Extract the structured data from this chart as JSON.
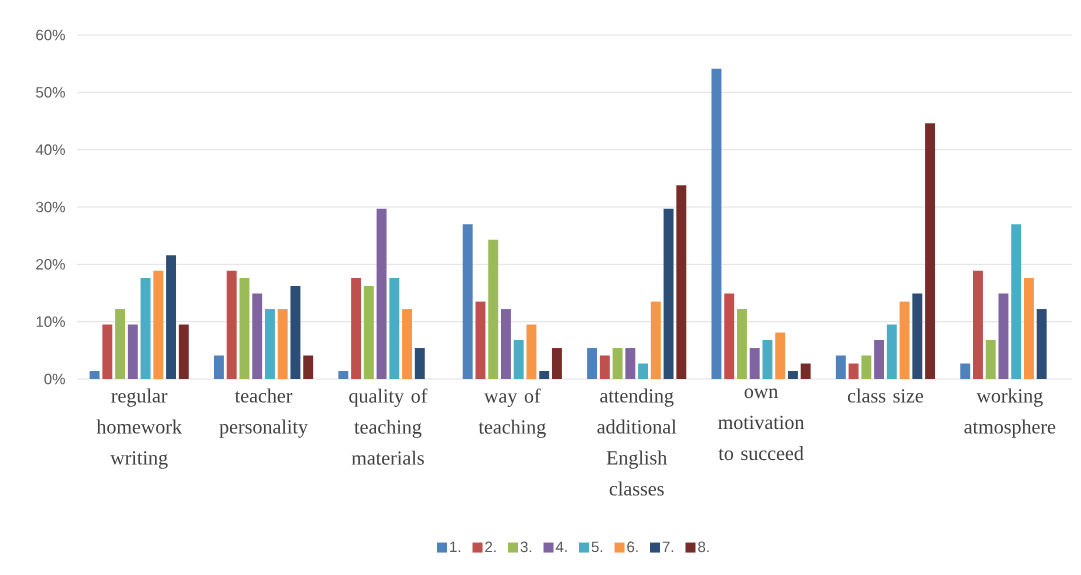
{
  "chart_data": {
    "type": "bar",
    "categories": [
      "regular homework writing",
      "teacher personality",
      "quality of teaching materials",
      "way of teaching",
      "attending additional English classes",
      "own motivation to succeed",
      "class size",
      "working atmosphere"
    ],
    "series": [
      {
        "name": "1.",
        "color": "#4f81bd",
        "values": [
          1.4,
          4.1,
          1.4,
          27.0,
          5.4,
          54.1,
          4.1,
          2.7
        ]
      },
      {
        "name": "2.",
        "color": "#c0504d",
        "values": [
          9.5,
          18.9,
          17.6,
          13.5,
          4.1,
          14.9,
          2.7,
          18.9
        ]
      },
      {
        "name": "3.",
        "color": "#9bbb59",
        "values": [
          12.2,
          17.6,
          16.2,
          24.3,
          5.4,
          12.2,
          4.1,
          6.8
        ]
      },
      {
        "name": "4.",
        "color": "#8064a2",
        "values": [
          9.5,
          14.9,
          29.7,
          12.2,
          5.4,
          5.4,
          6.8,
          14.9
        ]
      },
      {
        "name": "5.",
        "color": "#4bacc6",
        "values": [
          17.6,
          12.2,
          17.6,
          6.8,
          2.7,
          6.8,
          9.5,
          27.0
        ]
      },
      {
        "name": "6.",
        "color": "#f79646",
        "values": [
          18.9,
          12.2,
          12.2,
          9.5,
          13.5,
          8.1,
          13.5,
          17.6
        ]
      },
      {
        "name": "7.",
        "color": "#2c4d75",
        "values": [
          21.6,
          16.2,
          5.4,
          1.4,
          29.7,
          1.4,
          14.9,
          12.2
        ]
      },
      {
        "name": "8.",
        "color": "#772c2a",
        "values": [
          9.5,
          4.1,
          0,
          5.4,
          33.8,
          2.7,
          44.6,
          0
        ]
      }
    ],
    "ylim": [
      0,
      60
    ],
    "yticks": [
      {
        "value": 0,
        "label": "0%"
      },
      {
        "value": 10,
        "label": "10%"
      },
      {
        "value": 20,
        "label": "20%"
      },
      {
        "value": 30,
        "label": "30%"
      },
      {
        "value": 40,
        "label": "40%"
      },
      {
        "value": 50,
        "label": "50%"
      },
      {
        "value": 60,
        "label": "60%"
      }
    ],
    "grid": "y",
    "legend": "bottom"
  }
}
